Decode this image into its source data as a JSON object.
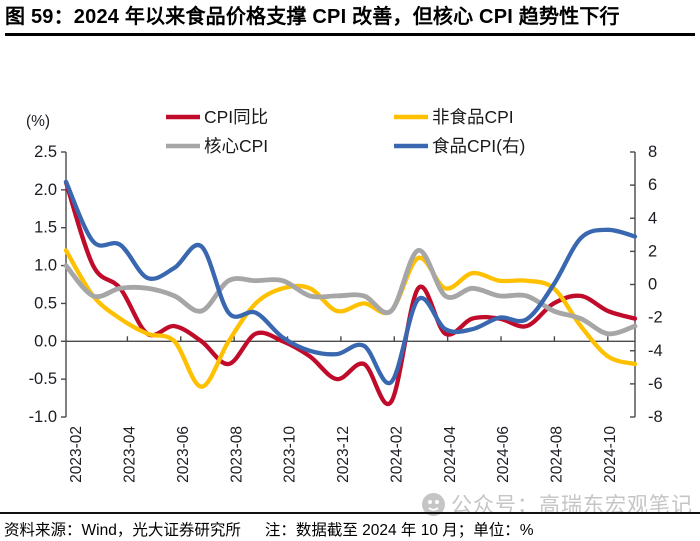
{
  "title": "图 59：2024 年以来食品价格支撑 CPI 改善，但核心 CPI 趋势性下行",
  "chart_data": {
    "type": "line",
    "x": [
      "2023-01",
      "2023-02",
      "2023-03",
      "2023-04",
      "2023-05",
      "2023-06",
      "2023-07",
      "2023-08",
      "2023-09",
      "2023-10",
      "2023-11",
      "2023-12",
      "2024-01",
      "2024-02",
      "2024-03",
      "2024-04",
      "2024-05",
      "2024-06",
      "2024-07",
      "2024-08",
      "2024-09",
      "2024-10"
    ],
    "x_label_every": 2,
    "x_label_start_index": 1,
    "left_axis": {
      "label": "(%)",
      "range": [
        -1.0,
        2.5
      ],
      "ticks": [
        2.5,
        2.0,
        1.5,
        1.0,
        0.5,
        0.0,
        -0.5,
        -1.0
      ]
    },
    "right_axis": {
      "range": [
        -8,
        8
      ],
      "ticks": [
        8,
        6,
        4,
        2,
        0,
        -2,
        -4,
        -6,
        -8
      ]
    },
    "grid": false,
    "legend_position": "top",
    "series": [
      {
        "name": "CPI同比",
        "axis": "left",
        "color": "#C00B2B",
        "width": 4.3,
        "values": [
          2.1,
          1.0,
          0.7,
          0.1,
          0.2,
          0.0,
          -0.3,
          0.1,
          0.0,
          -0.2,
          -0.5,
          -0.3,
          -0.8,
          0.7,
          0.1,
          0.3,
          0.3,
          0.2,
          0.5,
          0.6,
          0.4,
          0.3
        ]
      },
      {
        "name": "非食品CPI",
        "axis": "left",
        "color": "#FFC000",
        "width": 4.3,
        "values": [
          1.2,
          0.6,
          0.3,
          0.1,
          0.0,
          -0.6,
          0.0,
          0.5,
          0.7,
          0.7,
          0.4,
          0.5,
          0.4,
          1.1,
          0.7,
          0.9,
          0.8,
          0.8,
          0.7,
          0.2,
          -0.2,
          -0.3
        ]
      },
      {
        "name": "核心CPI",
        "axis": "left",
        "color": "#A6A6A6",
        "width": 4.8,
        "values": [
          1.0,
          0.6,
          0.7,
          0.7,
          0.6,
          0.4,
          0.8,
          0.8,
          0.8,
          0.6,
          0.6,
          0.6,
          0.4,
          1.2,
          0.6,
          0.7,
          0.6,
          0.6,
          0.4,
          0.3,
          0.1,
          0.2
        ]
      },
      {
        "name": "食品CPI(右)",
        "axis": "right",
        "color": "#3A68B0",
        "width": 4.3,
        "values": [
          6.2,
          2.6,
          2.4,
          0.4,
          1.0,
          2.3,
          -1.7,
          -1.7,
          -3.2,
          -4.0,
          -4.2,
          -3.7,
          -5.9,
          -0.9,
          -2.7,
          -2.7,
          -2.0,
          -2.1,
          0.0,
          2.8,
          3.3,
          2.9
        ]
      }
    ]
  },
  "footer": {
    "source": "资料来源：Wind，光大证券研究所",
    "note": "注：数据截至 2024 年 10 月；单位：%"
  },
  "watermark": {
    "text": "公众号：高瑞东宏观笔记"
  },
  "colors": {
    "axis": "#4a4a4a",
    "tick_text": "#1c1c24",
    "legend_text": "#1a1a1a"
  }
}
